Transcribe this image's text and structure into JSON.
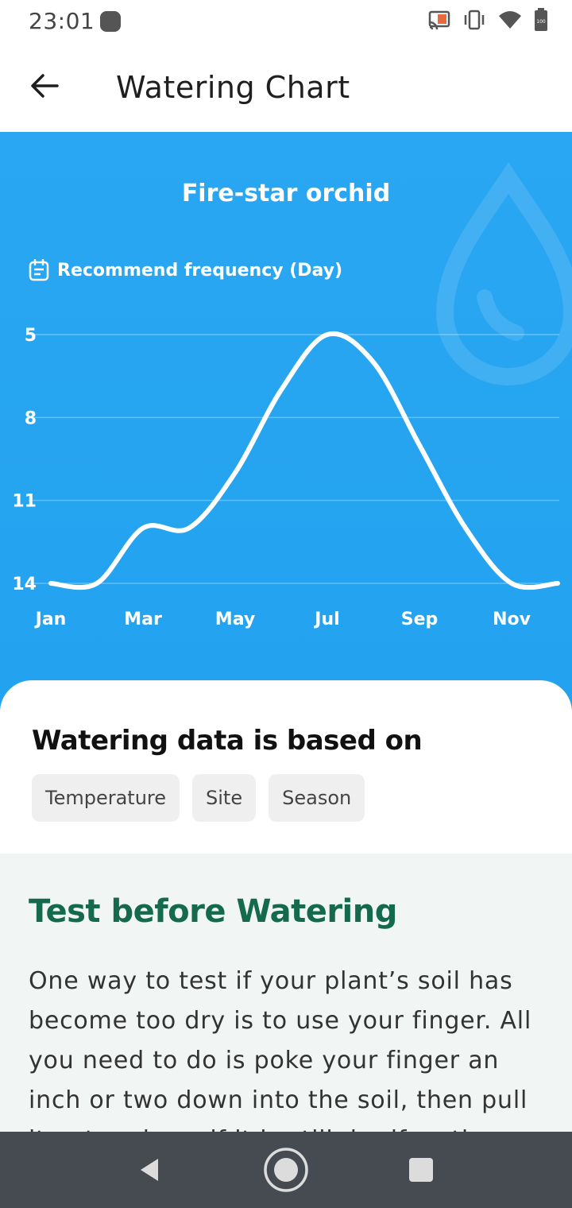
{
  "status_bar": {
    "time": "23:01",
    "icons": [
      "cast-icon",
      "vibrate-icon",
      "wifi-icon",
      "battery-icon"
    ]
  },
  "app_bar": {
    "title": "Watering Chart",
    "back_icon": "arrow-left-icon"
  },
  "chart_panel": {
    "plant_name": "Fire-star orchid",
    "frequency_label": "Recommend frequency (Day)",
    "background_color": "#27a6f0"
  },
  "chart_data": {
    "type": "line",
    "ylabel": "Recommend frequency (Day)",
    "y_ticks": [
      "5",
      "8",
      "11",
      "14"
    ],
    "y_tick_values": [
      5,
      8,
      11,
      14
    ],
    "ylim": [
      5,
      14
    ],
    "y_inverted": true,
    "x_ticks": [
      "Jan",
      "Mar",
      "May",
      "Jul",
      "Sep",
      "Nov"
    ],
    "x": [
      "Jan",
      "Feb",
      "Mar",
      "Apr",
      "May",
      "Jun",
      "Jul",
      "Aug",
      "Sep",
      "Oct",
      "Nov",
      "Dec"
    ],
    "series": [
      {
        "values": [
          14,
          14,
          12,
          12,
          10,
          7,
          5,
          6,
          9,
          12,
          14,
          14
        ]
      }
    ],
    "grid": true,
    "line_color": "#ffffff"
  },
  "based_on": {
    "title": "Watering data is based on",
    "chips": [
      "Temperature",
      "Site",
      "Season"
    ]
  },
  "tip": {
    "title": "Test before Watering",
    "body": "One way to test if your plant’s soil has become too dry is to use your finger. All you need to do is poke your finger an inch or two down into the soil, then pull it out and see if it is still dry if so then"
  },
  "nav_bar": {
    "back_icon": "nav-back-icon",
    "home_icon": "nav-home-icon",
    "recents_icon": "nav-recents-icon"
  }
}
